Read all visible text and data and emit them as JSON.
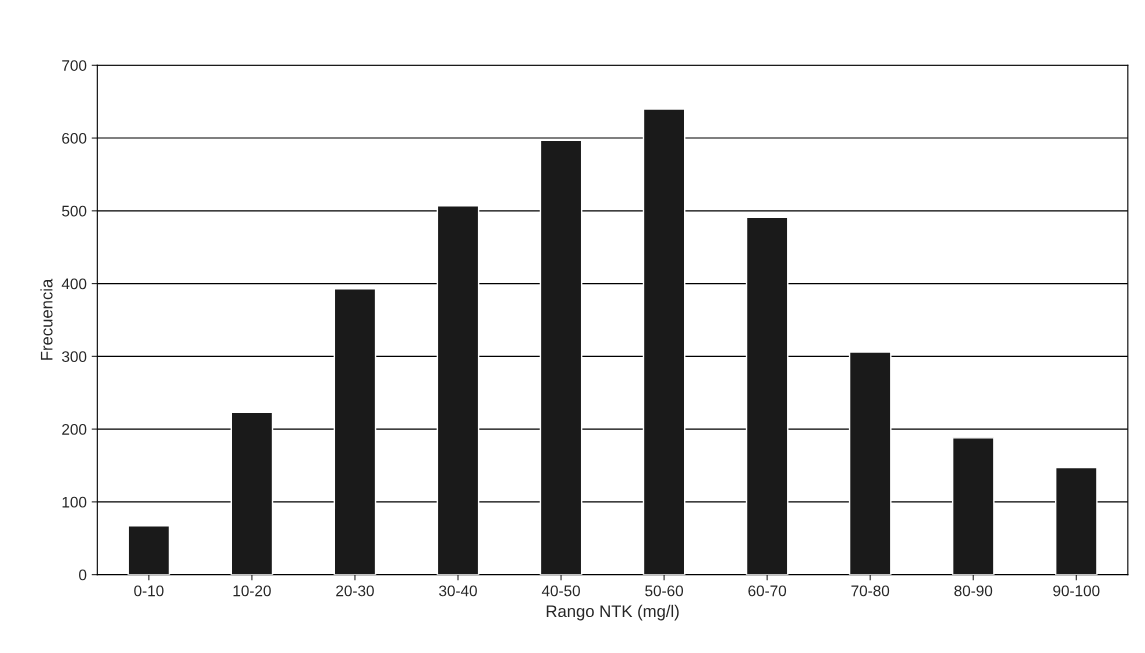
{
  "chart_data": {
    "type": "bar",
    "xlabel": "Rango NTK (mg/l)",
    "ylabel": "Frecuencia",
    "categories": [
      "0-10",
      "10-20",
      "20-30",
      "30-40",
      "40-50",
      "50-60",
      "60-70",
      "70-80",
      "80-90",
      "90-100"
    ],
    "values": [
      67,
      223,
      393,
      507,
      597,
      640,
      491,
      306,
      188,
      147
    ],
    "color": "#1a1a1a",
    "ylim": [
      0,
      700
    ],
    "yticks": [
      0,
      100,
      200,
      300,
      400,
      500,
      600,
      700
    ],
    "grid": "y"
  }
}
